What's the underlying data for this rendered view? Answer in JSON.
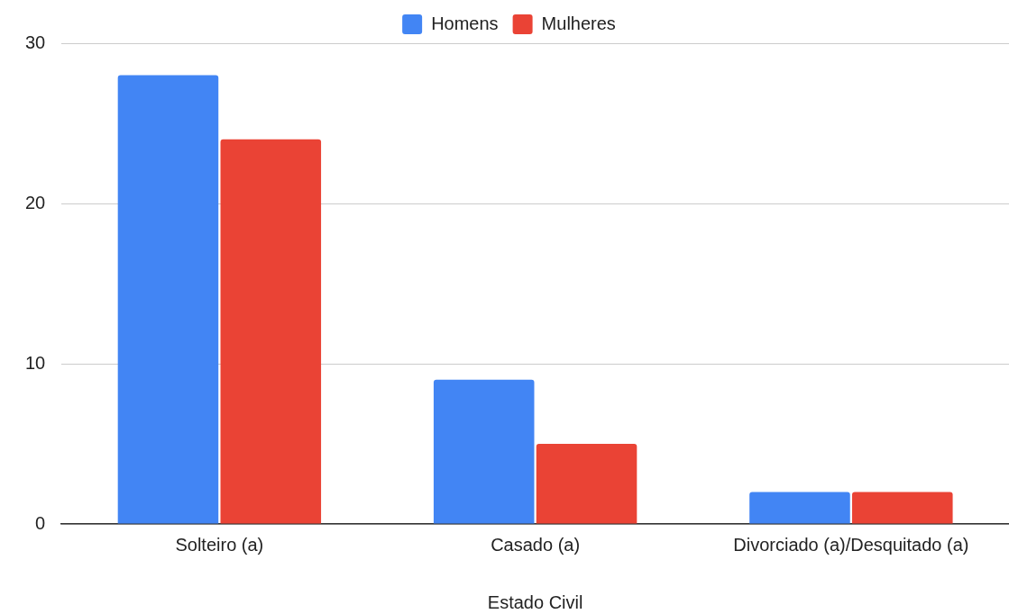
{
  "chart_data": {
    "type": "bar",
    "xlabel": "Estado Civil",
    "categories": [
      "Solteiro (a)",
      "Casado (a)",
      "Divorciado (a)/Desquitado (a)"
    ],
    "series": [
      {
        "name": "Homens",
        "color": "#4285f4",
        "values": [
          28,
          9,
          2
        ]
      },
      {
        "name": "Mulheres",
        "color": "#ea4335",
        "values": [
          24,
          5,
          2
        ]
      }
    ],
    "ylim": [
      0,
      30
    ],
    "yticks": [
      0,
      10,
      20,
      30
    ],
    "grid": "y",
    "legend": "top"
  }
}
